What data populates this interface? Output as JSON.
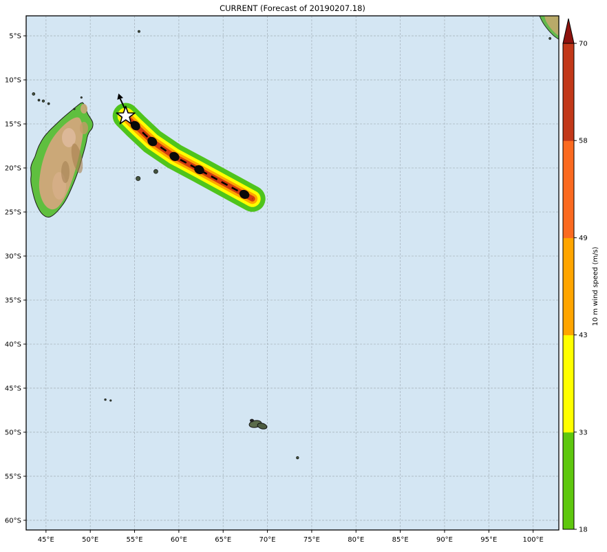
{
  "title": "CURRENT (Forecast of 20190207.18)",
  "map": {
    "ocean_color": "#d4e6f3",
    "grid_color": "#9aa5ad",
    "extent": {
      "lon_min": 42.76,
      "lon_max": 102.9,
      "lat_min": 2.73,
      "lat_max": 61.1
    },
    "x_axis": {
      "labels": [
        "45°E",
        "50°E",
        "55°E",
        "60°E",
        "65°E",
        "70°E",
        "75°E",
        "80°E",
        "85°E",
        "90°E",
        "95°E",
        "100°E"
      ],
      "lons": [
        45,
        50,
        55,
        60,
        65,
        70,
        75,
        80,
        85,
        90,
        95,
        100
      ]
    },
    "y_axis": {
      "labels": [
        "5°S",
        "10°S",
        "15°S",
        "20°S",
        "25°S",
        "30°S",
        "35°S",
        "40°S",
        "45°S",
        "50°S",
        "55°S",
        "60°S"
      ],
      "lats": [
        5,
        10,
        15,
        20,
        25,
        30,
        35,
        40,
        45,
        50,
        55,
        60
      ]
    }
  },
  "colorbar": {
    "label": "10 m wind speed (m/s)",
    "tick_labels": [
      "18",
      "33",
      "43",
      "49",
      "58",
      "70"
    ],
    "segments": [
      {
        "from": 18,
        "to": 33,
        "color": "#5ec70e"
      },
      {
        "from": 33,
        "to": 43,
        "color": "#ffff00"
      },
      {
        "from": 43,
        "to": 49,
        "color": "#ffa500"
      },
      {
        "from": 49,
        "to": 58,
        "color": "#fb6a20"
      },
      {
        "from": 58,
        "to": 70,
        "color": "#c23819"
      }
    ],
    "over_color": "#8e130e"
  },
  "track": {
    "current_position": {
      "lon_e": 54.0,
      "lat_s": 14.1
    },
    "forecast_points": [
      {
        "lon_e": 55.1,
        "lat_s": 15.2
      },
      {
        "lon_e": 57.0,
        "lat_s": 17.0
      },
      {
        "lon_e": 59.5,
        "lat_s": 18.7
      },
      {
        "lon_e": 62.3,
        "lat_s": 20.2
      },
      {
        "lon_e": 67.4,
        "lat_s": 23.0
      }
    ],
    "swath_end": {
      "lon_e": 68.3,
      "lat_s": 23.5
    },
    "swath_colors": {
      "outer": "#4fc41c",
      "band2": "#ffff00",
      "band3": "#ffa500",
      "core": "#d13c10"
    },
    "motion_arrow_bearing": "NNW"
  },
  "islands": [
    {
      "name": "grande-comore",
      "lon_e": 43.6,
      "lat_s": 11.6,
      "r": 2.0
    },
    {
      "name": "moheli",
      "lon_e": 44.2,
      "lat_s": 12.3,
      "r": 1.5
    },
    {
      "name": "anjouan",
      "lon_e": 44.7,
      "lat_s": 12.4,
      "r": 1.8
    },
    {
      "name": "mayotte",
      "lon_e": 45.3,
      "lat_s": 12.7,
      "r": 1.5
    },
    {
      "name": "glorioso",
      "lon_e": 48.2,
      "lat_s": 13.3,
      "r": 1.2
    },
    {
      "name": "cap-ambre-islet",
      "lon_e": 49.0,
      "lat_s": 12.0,
      "r": 1.2
    },
    {
      "name": "seychelles",
      "lon_e": 55.5,
      "lat_s": 4.5,
      "r": 1.6
    },
    {
      "name": "reunion",
      "lon_e": 55.4,
      "lat_s": 21.2,
      "r": 3.2
    },
    {
      "name": "mauritius",
      "lon_e": 57.4,
      "lat_s": 20.4,
      "r": 3.0
    },
    {
      "name": "rodrigues",
      "lon_e": 63.3,
      "lat_s": 19.8,
      "r": 1.8
    },
    {
      "name": "crozet-west",
      "lon_e": 51.7,
      "lat_s": 46.3,
      "r": 1.3
    },
    {
      "name": "crozet-east",
      "lon_e": 52.3,
      "lat_s": 46.4,
      "r": 1.2
    },
    {
      "name": "heard-island",
      "lon_e": 73.4,
      "lat_s": 52.9,
      "r": 1.8
    },
    {
      "name": "enggano",
      "lon_e": 101.9,
      "lat_s": 5.3,
      "r": 1.5
    }
  ],
  "chart_data": {
    "type": "line",
    "title": "CURRENT (Forecast of 20190207.18)",
    "xlabel": "",
    "ylabel": "",
    "x_ticks": [
      "45°E",
      "50°E",
      "55°E",
      "60°E",
      "65°E",
      "70°E",
      "75°E",
      "80°E",
      "85°E",
      "90°E",
      "95°E",
      "100°E"
    ],
    "y_ticks": [
      "5°S",
      "10°S",
      "15°S",
      "20°S",
      "25°S",
      "30°S",
      "35°S",
      "40°S",
      "45°S",
      "50°S",
      "55°S",
      "60°S"
    ],
    "x_range_deg_e": [
      42.8,
      102.9
    ],
    "y_range_deg_s": [
      2.7,
      61.1
    ],
    "grid": true,
    "series": [
      {
        "name": "cyclone-forecast-track",
        "x": [
          54.0,
          55.1,
          57.0,
          59.5,
          62.3,
          67.4
        ],
        "y": [
          14.1,
          15.2,
          17.0,
          18.7,
          20.2,
          23.0
        ]
      }
    ],
    "colorbar": {
      "label": "10 m wind speed (m/s)",
      "ticks": [
        18,
        33,
        43,
        49,
        58,
        70
      ],
      "position": "right"
    }
  }
}
